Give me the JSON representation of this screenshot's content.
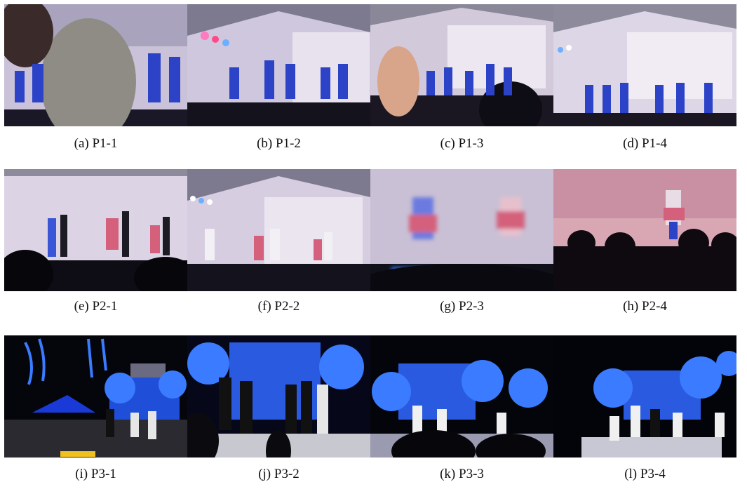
{
  "figure": {
    "panels": [
      {
        "caption": "(a) P1-1",
        "scene": "dance-blue"
      },
      {
        "caption": "(b) P1-2",
        "scene": "dance-blue"
      },
      {
        "caption": "(c) P1-3",
        "scene": "dance-blue"
      },
      {
        "caption": "(d) P1-4",
        "scene": "dance-blue"
      },
      {
        "caption": "(e) P2-1",
        "scene": "dance-mixed"
      },
      {
        "caption": "(f) P2-2",
        "scene": "dance-mixed"
      },
      {
        "caption": "(g) P2-3",
        "scene": "dance-mixed-blur"
      },
      {
        "caption": "(h) P2-4",
        "scene": "dance-red"
      },
      {
        "caption": "(i) P3-1",
        "scene": "concert-night"
      },
      {
        "caption": "(j) P3-2",
        "scene": "concert-night"
      },
      {
        "caption": "(k) P3-3",
        "scene": "concert-night"
      },
      {
        "caption": "(l) P3-4",
        "scene": "concert-night"
      }
    ],
    "colors": {
      "stage_screen": "#d9cfe6",
      "stage_dark": "#0d0a14",
      "dancer_blue": "#2c43c8",
      "skirt_red": "#d4607c",
      "tree_lights": "#3a7bff",
      "night_sky": "#05060c"
    }
  }
}
